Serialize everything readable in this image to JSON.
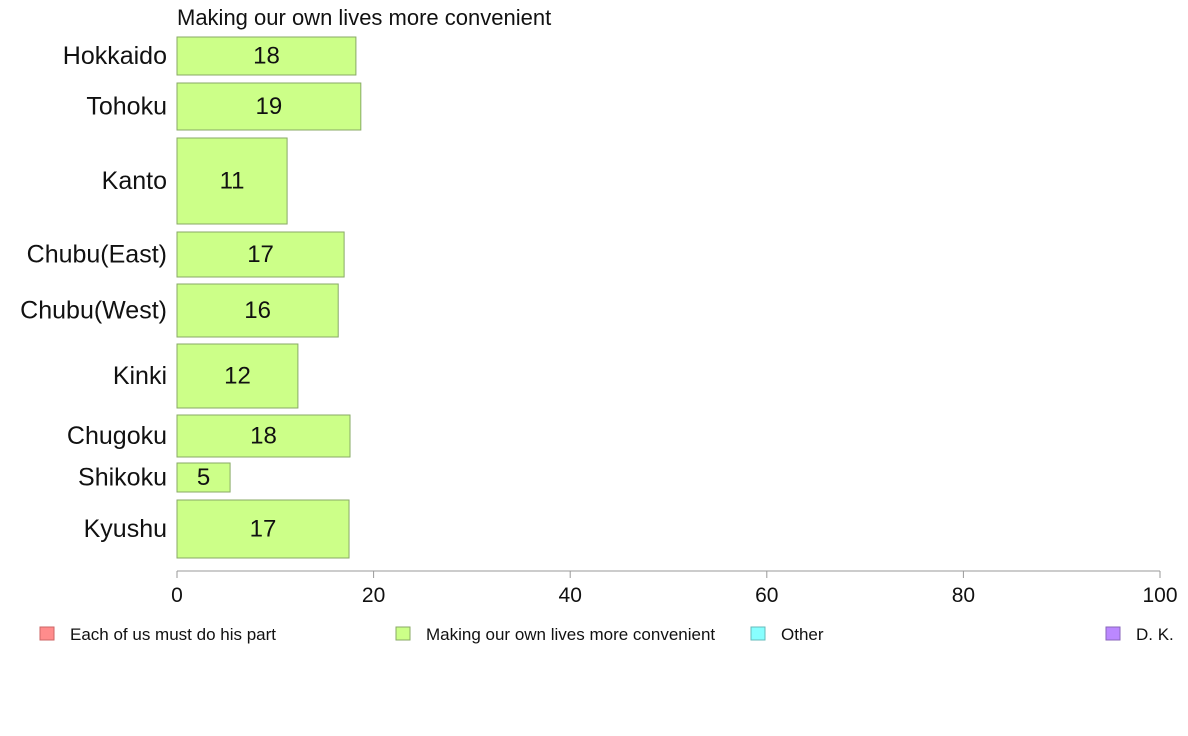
{
  "chart_data": {
    "type": "bar",
    "orientation": "horizontal",
    "title": "Making our own lives more convenient",
    "xlabel": "",
    "ylabel": "",
    "xlim": [
      0,
      100
    ],
    "x_ticks": [
      0,
      20,
      40,
      60,
      80,
      100
    ],
    "grid": false,
    "legend_position": "bottom",
    "categories": [
      "Hokkaido",
      "Tohoku",
      "Kanto",
      "Chubu(East)",
      "Chubu(West)",
      "Kinki",
      "Chugoku",
      "Shikoku",
      "Kyushu"
    ],
    "series": [
      {
        "name": "Making our own lives more convenient",
        "color": "#ccff88",
        "stroke": "#88aa66",
        "values": [
          18.2,
          18.7,
          11.2,
          17.0,
          16.4,
          12.3,
          17.6,
          5.4,
          17.5
        ],
        "labels": [
          "18",
          "19",
          "11",
          "17",
          "16",
          "12",
          "18",
          "5",
          "17"
        ]
      }
    ],
    "legend": [
      {
        "name": "Each of us must do his part",
        "color": "#ff8c8c",
        "stroke": "#cc6666"
      },
      {
        "name": "Making our own lives more convenient",
        "color": "#ccff88",
        "stroke": "#88aa66"
      },
      {
        "name": "Other",
        "color": "#88ffff",
        "stroke": "#66bbbb"
      },
      {
        "name": "D. K.",
        "color": "#bb88ff",
        "stroke": "#8866bb"
      }
    ]
  }
}
